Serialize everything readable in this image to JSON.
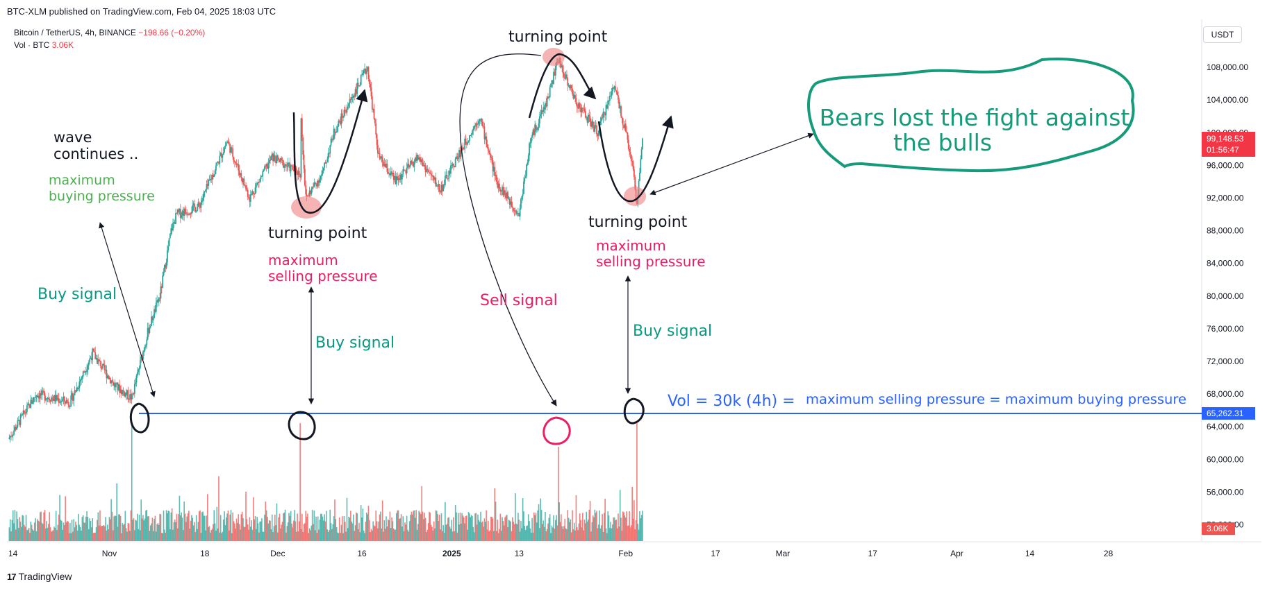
{
  "header": {
    "published": "BTC-XLM published on TradingView.com, Feb 04, 2025 18:03 UTC",
    "symbol_line": "Bitcoin / TetherUS, 4h, BINANCE",
    "change": "−198.66 (−0.20%)",
    "vol_label": "Vol · BTC",
    "vol_value": "3.06K",
    "currency": "USDT"
  },
  "footer": {
    "brand": "TradingView",
    "logo_glyph": "17"
  },
  "colors": {
    "up": "#26a69a",
    "down": "#ef5350",
    "level_line": "#2962ff",
    "buy_text": "#089981",
    "sell_text": "#e91e63",
    "bubble": "#169b7a",
    "highlight": "#f08080",
    "buying_pressure": "#4caf50"
  },
  "chart_data": {
    "type": "candlestick",
    "title": "Bitcoin / TetherUS, 4h, BINANCE",
    "ylim": [
      50000,
      112000
    ],
    "y_ticks": [
      "108,000.00",
      "104,000.00",
      "100,000.00",
      "96,000.00",
      "92,000.00",
      "88,000.00",
      "84,000.00",
      "80,000.00",
      "76,000.00",
      "72,000.00",
      "68,000.00",
      "64,000.00",
      "60,000.00",
      "56,000.00",
      "52,000.00"
    ],
    "x_ticks": [
      "14",
      "Nov",
      "18",
      "Dec",
      "16",
      "2025",
      "13",
      "Feb",
      "17",
      "Mar",
      "17",
      "Apr",
      "14",
      "28"
    ],
    "price_path": [
      {
        "x": "Oct 14",
        "y": 62500
      },
      {
        "x": "Oct 19",
        "y": 68000
      },
      {
        "x": "Oct 25",
        "y": 67000
      },
      {
        "x": "Oct 29",
        "y": 73000
      },
      {
        "x": "Nov 2",
        "y": 69000
      },
      {
        "x": "Nov 5",
        "y": 67500
      },
      {
        "x": "Nov 8",
        "y": 76000
      },
      {
        "x": "Nov 10",
        "y": 80000
      },
      {
        "x": "Nov 12",
        "y": 88000
      },
      {
        "x": "Nov 13",
        "y": 90000
      },
      {
        "x": "Nov 17",
        "y": 91000
      },
      {
        "x": "Nov 22",
        "y": 99000
      },
      {
        "x": "Nov 26",
        "y": 92000
      },
      {
        "x": "Nov 30",
        "y": 97000
      },
      {
        "x": "Dec 5",
        "y": 95000
      },
      {
        "x": "Dec 5",
        "y": 103500
      },
      {
        "x": "Dec 6",
        "y": 92000
      },
      {
        "x": "Dec 9",
        "y": 95000
      },
      {
        "x": "Dec 11",
        "y": 100000
      },
      {
        "x": "Dec 14",
        "y": 104000
      },
      {
        "x": "Dec 17",
        "y": 108000
      },
      {
        "x": "Dec 19",
        "y": 97000
      },
      {
        "x": "Dec 22",
        "y": 94000
      },
      {
        "x": "Dec 26",
        "y": 97000
      },
      {
        "x": "Dec 30",
        "y": 93000
      },
      {
        "x": "Jan 2",
        "y": 97000
      },
      {
        "x": "Jan 6",
        "y": 102000
      },
      {
        "x": "Jan 9",
        "y": 94000
      },
      {
        "x": "Jan 13",
        "y": 90000
      },
      {
        "x": "Jan 15",
        "y": 99000
      },
      {
        "x": "Jan 18",
        "y": 104000
      },
      {
        "x": "Jan 20",
        "y": 109000
      },
      {
        "x": "Jan 23",
        "y": 104000
      },
      {
        "x": "Jan 27",
        "y": 100000
      },
      {
        "x": "Jan 30",
        "y": 106000
      },
      {
        "x": "Feb 2",
        "y": 97000
      },
      {
        "x": "Feb 3",
        "y": 91500
      },
      {
        "x": "Feb 4",
        "y": 99148
      }
    ],
    "last_price": "99,148.53",
    "countdown": "01:56:47",
    "level_label": "65,262.31",
    "level_value": 65262.31,
    "volume_marker": "3.06K",
    "volume_spikes": [
      {
        "x": "Nov 5",
        "value": 30000
      },
      {
        "x": "Dec 5",
        "value": 30000
      },
      {
        "x": "Jan 20",
        "value": 24000
      },
      {
        "x": "Feb 3",
        "value": 30000
      }
    ]
  },
  "annotations": {
    "wave": [
      "wave",
      "continues .."
    ],
    "max_buying": [
      "maximum",
      "buying pressure"
    ],
    "buy_signal": "Buy signal",
    "sell_signal": "Sell signal",
    "turning_point": "turning point",
    "max_selling": [
      "maximum",
      "selling pressure"
    ],
    "bubble": [
      "Bears lost the fight against",
      "the bulls"
    ],
    "vol_prefix": "Vol = 30k (4h) =",
    "vol_suffix": "maximum selling pressure = maximum buying pressure"
  }
}
